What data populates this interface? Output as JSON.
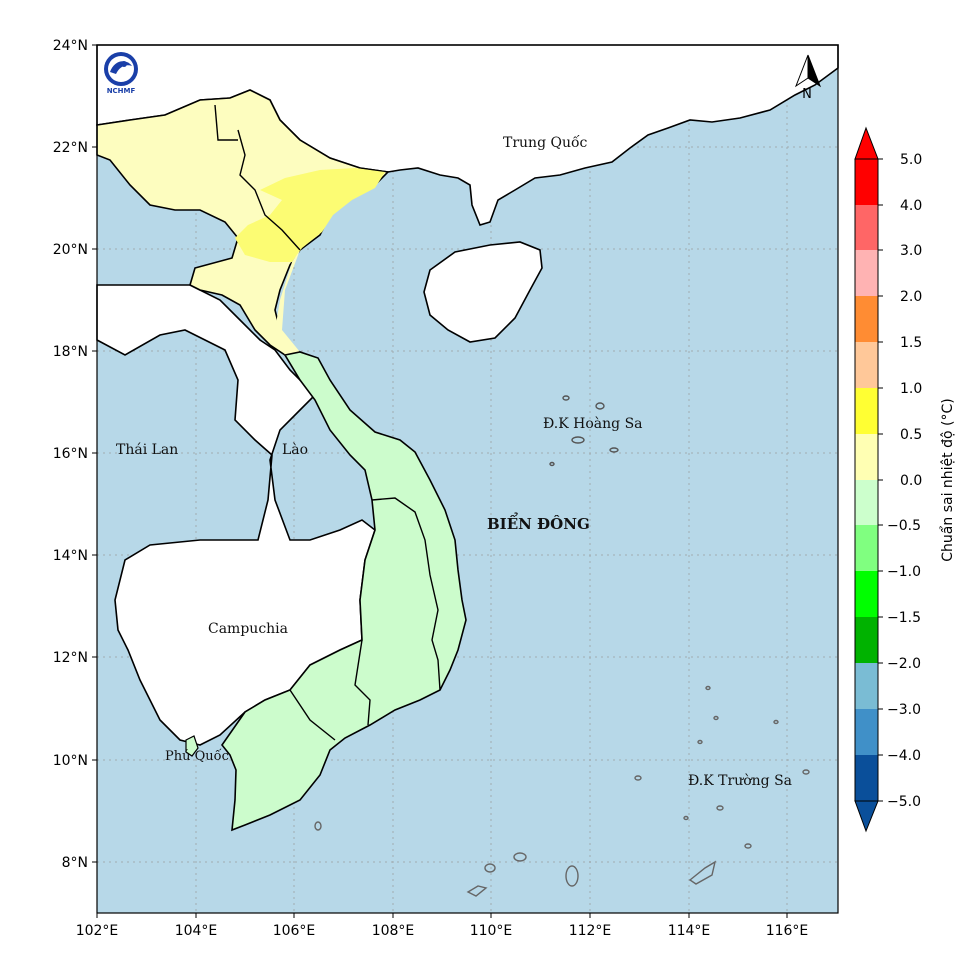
{
  "map": {
    "lat_ticks": [
      "24°N",
      "22°N",
      "20°N",
      "18°N",
      "16°N",
      "14°N",
      "12°N",
      "10°N",
      "8°N"
    ],
    "lon_ticks": [
      "102°E",
      "104°E",
      "106°E",
      "108°E",
      "110°E",
      "112°E",
      "114°E",
      "116°E"
    ],
    "place_labels": {
      "china": "Trung Quốc",
      "thailand": "Thái Lan",
      "laos": "Lào",
      "cambodia": "Campuchia",
      "phu_quoc": "Phú Quốc",
      "sea": "BIỂN ĐÔNG",
      "paracel": "Đ.K Hoàng Sa",
      "spratly": "Đ.K Trường Sa"
    },
    "north_arrow": "N",
    "logo_text": "NCHMF",
    "ocean_color": "#b7d8e8",
    "land_color": "#ffffff",
    "regions": [
      {
        "name": "north-west",
        "value_range": "0.0 – 0.5",
        "color": "#fdfdbf"
      },
      {
        "name": "red-river-delta",
        "value_range": "0.5 – 1.0",
        "color": "#fcfc73"
      },
      {
        "name": "north-central",
        "value_range": "0.0 – 0.5",
        "color": "#fdfdbf"
      },
      {
        "name": "south-central-and-south",
        "value_range": "-0.5 – 0.0",
        "color": "#ccfccc"
      }
    ]
  },
  "colorbar": {
    "title": "Chuẩn sai nhiệt độ (°C)",
    "tick_labels": [
      "5.0",
      "4.0",
      "3.0",
      "2.0",
      "1.5",
      "1.0",
      "0.5",
      "0.0",
      "−0.5",
      "−1.0",
      "−1.5",
      "−2.0",
      "−3.0",
      "−4.0",
      "−5.0"
    ],
    "colors_top_to_bottom": [
      "#ff0000",
      "#ff0000",
      "#ff6666",
      "#ffb3b3",
      "#ff8c33",
      "#ffc899",
      "#ffff33",
      "#ffffb3",
      "#ccffcc",
      "#80ff80",
      "#00ff00",
      "#00b200",
      "#7abcd4",
      "#4090c8",
      "#0a4f9a"
    ]
  }
}
